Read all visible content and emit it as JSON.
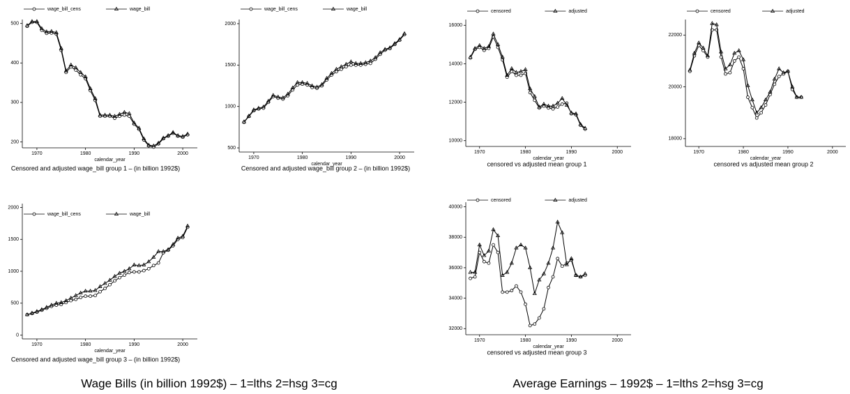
{
  "group_titles": [
    "Wage Bills (in billion 1992$) – 1=lths 2=hsg 3=cg",
    "Average Earnings – 1992$ – 1=lths 2=hsg 3=cg"
  ],
  "chart_data": [
    {
      "type": "line",
      "caption": "Censored and adjusted wage_bill group 1 – (in billion 1992$)",
      "x_label": "calendar_year",
      "x": [
        1968,
        1969,
        1970,
        1971,
        1972,
        1973,
        1974,
        1975,
        1976,
        1977,
        1978,
        1979,
        1980,
        1981,
        1982,
        1983,
        1984,
        1985,
        1986,
        1987,
        1988,
        1989,
        1990,
        1991,
        1992,
        1993,
        1994,
        1995,
        1996,
        1997,
        1998,
        1999,
        2000,
        2001
      ],
      "series": [
        {
          "name": "wage_bill_cens",
          "color": "#000000",
          "marker": "circle",
          "values": [
            493,
            503,
            503,
            483,
            475,
            476,
            473,
            432,
            376,
            390,
            382,
            370,
            360,
            330,
            305,
            265,
            265,
            265,
            260,
            265,
            268,
            265,
            245,
            232,
            205,
            190,
            187,
            195,
            208,
            215,
            222,
            215,
            212,
            218
          ]
        },
        {
          "name": "wage_bill",
          "color": "#000000",
          "marker": "triangle",
          "values": [
            495,
            505,
            505,
            487,
            479,
            480,
            477,
            437,
            380,
            395,
            388,
            376,
            365,
            335,
            310,
            268,
            268,
            268,
            265,
            270,
            275,
            272,
            248,
            235,
            208,
            192,
            190,
            197,
            210,
            216,
            224,
            216,
            214,
            220
          ]
        }
      ],
      "xlim": [
        1967,
        2003
      ],
      "xticks": [
        1970,
        1980,
        1990,
        2000
      ],
      "ylim": [
        185,
        510
      ],
      "yticks": [
        200,
        300,
        400,
        500
      ]
    },
    {
      "type": "line",
      "caption": "Censored and adjusted wage_bill group 2 – (in billion 1992$)",
      "x_label": "calendar_year",
      "x": [
        1968,
        1969,
        1970,
        1971,
        1972,
        1973,
        1974,
        1975,
        1976,
        1977,
        1978,
        1979,
        1980,
        1981,
        1982,
        1983,
        1984,
        1985,
        1986,
        1987,
        1988,
        1989,
        1990,
        1991,
        1992,
        1993,
        1994,
        1995,
        1996,
        1997,
        1998,
        1999,
        2000,
        2001
      ],
      "series": [
        {
          "name": "wage_bill_cens",
          "color": "#000000",
          "marker": "circle",
          "values": [
            810,
            880,
            950,
            970,
            980,
            1050,
            1120,
            1100,
            1090,
            1130,
            1200,
            1260,
            1270,
            1260,
            1230,
            1220,
            1250,
            1320,
            1380,
            1420,
            1450,
            1480,
            1500,
            1500,
            1500,
            1510,
            1520,
            1570,
            1630,
            1680,
            1700,
            1750,
            1800,
            1870
          ]
        },
        {
          "name": "wage_bill",
          "color": "#000000",
          "marker": "triangle",
          "values": [
            815,
            885,
            960,
            980,
            995,
            1065,
            1135,
            1115,
            1105,
            1150,
            1225,
            1290,
            1290,
            1280,
            1250,
            1235,
            1265,
            1340,
            1400,
            1450,
            1480,
            1510,
            1540,
            1520,
            1520,
            1530,
            1550,
            1590,
            1650,
            1690,
            1710,
            1760,
            1810,
            1880
          ]
        }
      ],
      "xlim": [
        1967,
        2003
      ],
      "xticks": [
        1970,
        1980,
        1990,
        2000
      ],
      "ylim": [
        450,
        2050
      ],
      "yticks": [
        500,
        1000,
        1500,
        2000
      ]
    },
    {
      "type": "line",
      "caption": "Censored and adjusted wage_bill group 3 – (in billion 1992$)",
      "x_label": "calendar_year",
      "x": [
        1968,
        1969,
        1970,
        1971,
        1972,
        1973,
        1974,
        1975,
        1976,
        1977,
        1978,
        1979,
        1980,
        1981,
        1982,
        1983,
        1984,
        1985,
        1986,
        1987,
        1988,
        1989,
        1990,
        1991,
        1992,
        1993,
        1994,
        1995,
        1996,
        1997,
        1998,
        1999,
        2000,
        2001
      ],
      "series": [
        {
          "name": "wage_bill_cens",
          "color": "#000000",
          "marker": "circle",
          "values": [
            320,
            340,
            360,
            390,
            420,
            450,
            470,
            480,
            510,
            540,
            560,
            590,
            610,
            610,
            620,
            680,
            730,
            790,
            850,
            900,
            940,
            980,
            990,
            990,
            1010,
            1040,
            1090,
            1130,
            1290,
            1330,
            1400,
            1500,
            1530,
            1690
          ]
        },
        {
          "name": "wage_bill",
          "color": "#000000",
          "marker": "triangle",
          "values": [
            320,
            345,
            370,
            400,
            435,
            470,
            500,
            510,
            540,
            580,
            620,
            660,
            690,
            690,
            700,
            760,
            810,
            860,
            920,
            970,
            1000,
            1040,
            1100,
            1090,
            1100,
            1150,
            1220,
            1310,
            1310,
            1340,
            1420,
            1520,
            1550,
            1710
          ]
        }
      ],
      "xlim": [
        1967,
        2003
      ],
      "xticks": [
        1970,
        1980,
        1990,
        2000
      ],
      "ylim": [
        -60,
        2060
      ],
      "yticks": [
        0,
        500,
        1000,
        1500,
        2000
      ]
    },
    {
      "type": "line",
      "caption": "censored vs adjusted mean group 1",
      "x_label": "calendar_year",
      "x": [
        1968,
        1969,
        1970,
        1971,
        1972,
        1973,
        1974,
        1975,
        1976,
        1977,
        1978,
        1979,
        1980,
        1981,
        1982,
        1983,
        1984,
        1985,
        1986,
        1987,
        1988,
        1989,
        1990,
        1991,
        1992,
        1993
      ],
      "series": [
        {
          "name": "censored",
          "color": "#000000",
          "marker": "circle",
          "values": [
            14300,
            14750,
            14850,
            14700,
            14800,
            15400,
            14850,
            14200,
            13300,
            13600,
            13400,
            13400,
            13500,
            12500,
            12100,
            11700,
            11800,
            11700,
            11650,
            11750,
            11900,
            11950,
            11400,
            11350,
            10800,
            10600
          ]
        },
        {
          "name": "adjusted",
          "color": "#000000",
          "marker": "triangle",
          "values": [
            14350,
            14800,
            14950,
            14800,
            14900,
            15550,
            15000,
            14350,
            13400,
            13750,
            13550,
            13600,
            13700,
            12700,
            12300,
            11750,
            11900,
            11800,
            11800,
            11950,
            12200,
            11850,
            11450,
            11400,
            10850,
            10650
          ]
        }
      ],
      "xlim": [
        1967,
        2003
      ],
      "xticks": [
        1970,
        1980,
        1990,
        2000
      ],
      "ylim": [
        9700,
        16300
      ],
      "yticks": [
        10000,
        12000,
        14000,
        16000
      ]
    },
    {
      "type": "line",
      "caption": "censored vs adjusted mean group 2",
      "x_label": "calendar_year",
      "x": [
        1968,
        1969,
        1970,
        1971,
        1972,
        1973,
        1974,
        1975,
        1976,
        1977,
        1978,
        1979,
        1980,
        1981,
        1982,
        1983,
        1984,
        1985,
        1986,
        1987,
        1988,
        1989,
        1990,
        1991,
        1992,
        1993
      ],
      "series": [
        {
          "name": "censored",
          "color": "#000000",
          "marker": "circle",
          "values": [
            20600,
            21200,
            21600,
            21400,
            21150,
            22200,
            22200,
            21150,
            20500,
            20550,
            21000,
            21150,
            20700,
            19600,
            19200,
            18800,
            19000,
            19300,
            19700,
            20100,
            20400,
            20500,
            20600,
            19900,
            19600,
            19600
          ]
        },
        {
          "name": "adjusted",
          "color": "#000000",
          "marker": "triangle",
          "values": [
            20650,
            21300,
            21700,
            21500,
            21200,
            22450,
            22400,
            21350,
            20700,
            20850,
            21300,
            21400,
            21050,
            20050,
            19500,
            19000,
            19200,
            19500,
            19800,
            20300,
            20700,
            20550,
            20600,
            20000,
            19600,
            19600
          ]
        }
      ],
      "xlim": [
        1967,
        2003
      ],
      "xticks": [
        1970,
        1980,
        1990,
        2000
      ],
      "ylim": [
        17700,
        22600
      ],
      "yticks": [
        18000,
        20000,
        22000
      ]
    },
    {
      "type": "line",
      "caption": "censored vs adjusted mean group 3",
      "x_label": "calendar_year",
      "x": [
        1968,
        1969,
        1970,
        1971,
        1972,
        1973,
        1974,
        1975,
        1976,
        1977,
        1978,
        1979,
        1980,
        1981,
        1982,
        1983,
        1984,
        1985,
        1986,
        1987,
        1988,
        1989,
        1990,
        1991,
        1992,
        1993
      ],
      "series": [
        {
          "name": "censored",
          "color": "#000000",
          "marker": "circle",
          "values": [
            35300,
            35400,
            37000,
            36400,
            36300,
            37500,
            37000,
            34400,
            34400,
            34500,
            34800,
            34400,
            33600,
            32200,
            32300,
            32700,
            33300,
            34700,
            35400,
            36600,
            36100,
            36300,
            36500,
            35500,
            35400,
            35500
          ]
        },
        {
          "name": "adjusted",
          "color": "#000000",
          "marker": "triangle",
          "values": [
            35700,
            35700,
            37500,
            36800,
            37100,
            38500,
            38100,
            35500,
            35700,
            36300,
            37300,
            37500,
            37300,
            36000,
            34300,
            35200,
            35600,
            36300,
            37300,
            39000,
            38300,
            36200,
            36600,
            35500,
            35400,
            35600
          ]
        }
      ],
      "xlim": [
        1967,
        2003
      ],
      "xticks": [
        1970,
        1980,
        1990,
        2000
      ],
      "ylim": [
        31600,
        40300
      ],
      "yticks": [
        32000,
        34000,
        36000,
        38000,
        40000
      ]
    }
  ]
}
